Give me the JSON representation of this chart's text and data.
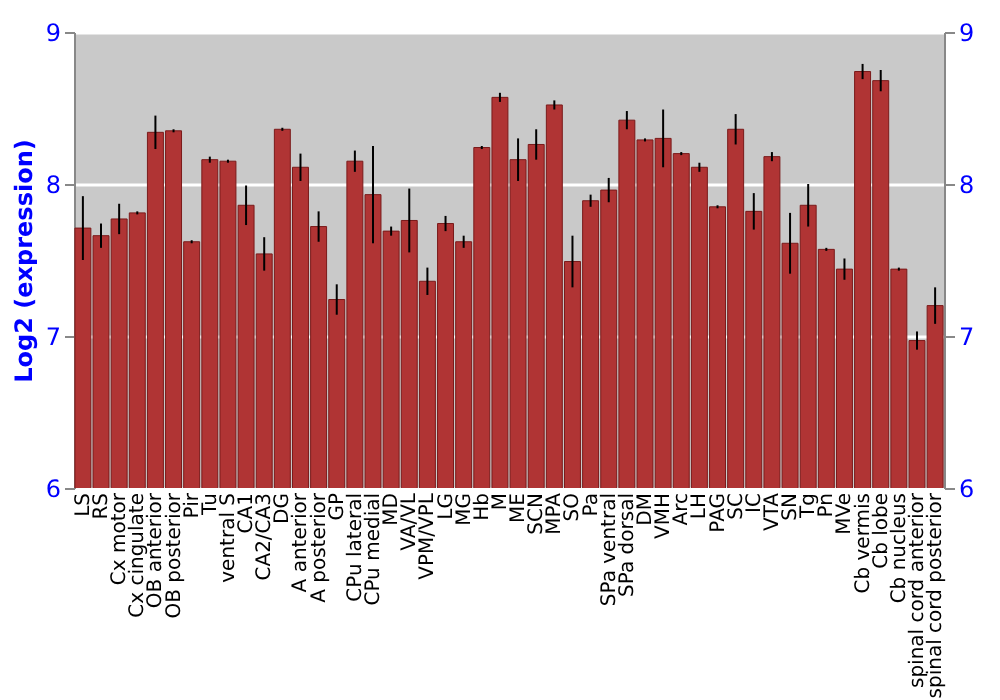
{
  "chart_data": {
    "type": "bar",
    "ylabel": "Log2 (expression)",
    "categories": [
      "LS",
      "RS",
      "Cx motor",
      "Cx cingulate",
      "OB anterior",
      "OB posterior",
      "Pir",
      "Tu",
      "ventral S",
      "CA1",
      "CA2/CA3",
      "DG",
      "A anterior",
      "A posterior",
      "GP",
      "CPu lateral",
      "CPu medial",
      "MD",
      "VA/VL",
      "VPM/VPL",
      "LG",
      "MG",
      "Hb",
      "M",
      "ME",
      "SCN",
      "MPA",
      "SO",
      "Pa",
      "SPa ventral",
      "SPa dorsal",
      "DM",
      "VMH",
      "Arc",
      "LH",
      "PAG",
      "SC",
      "IC",
      "VTA",
      "SN",
      "Tg",
      "Pn",
      "MVe",
      "Cb vermis",
      "Cb lobe",
      "Cb nucleus",
      "spinal cord anterior",
      "spinal cord posterior"
    ],
    "values": [
      7.71,
      7.66,
      7.77,
      7.81,
      8.34,
      8.35,
      7.62,
      8.16,
      8.15,
      7.86,
      7.54,
      8.36,
      8.11,
      7.72,
      7.24,
      8.15,
      7.93,
      7.69,
      7.76,
      7.36,
      7.74,
      7.62,
      8.24,
      8.57,
      8.16,
      8.26,
      8.52,
      7.49,
      7.89,
      7.96,
      8.42,
      8.29,
      8.3,
      8.2,
      8.11,
      7.85,
      8.36,
      7.82,
      8.18,
      7.61,
      7.86,
      7.57,
      7.44,
      8.74,
      8.68,
      7.44,
      6.97,
      7.2
    ],
    "errors": [
      0.21,
      0.08,
      0.1,
      0.01,
      0.11,
      0.01,
      0.01,
      0.02,
      0.01,
      0.13,
      0.11,
      0.01,
      0.09,
      0.1,
      0.1,
      0.07,
      0.32,
      0.03,
      0.21,
      0.09,
      0.05,
      0.04,
      0.01,
      0.03,
      0.14,
      0.1,
      0.03,
      0.17,
      0.04,
      0.08,
      0.06,
      0.01,
      0.19,
      0.01,
      0.03,
      0.01,
      0.1,
      0.12,
      0.03,
      0.2,
      0.14,
      0.01,
      0.07,
      0.05,
      0.07,
      0.01,
      0.06,
      0.12
    ],
    "color": "#b03434",
    "ylim": [
      6,
      9
    ],
    "yticks": [
      6,
      7,
      8,
      9
    ],
    "y2lim": [
      6,
      9
    ],
    "y2ticks": [
      6,
      7,
      8,
      9
    ],
    "grid": "y"
  }
}
